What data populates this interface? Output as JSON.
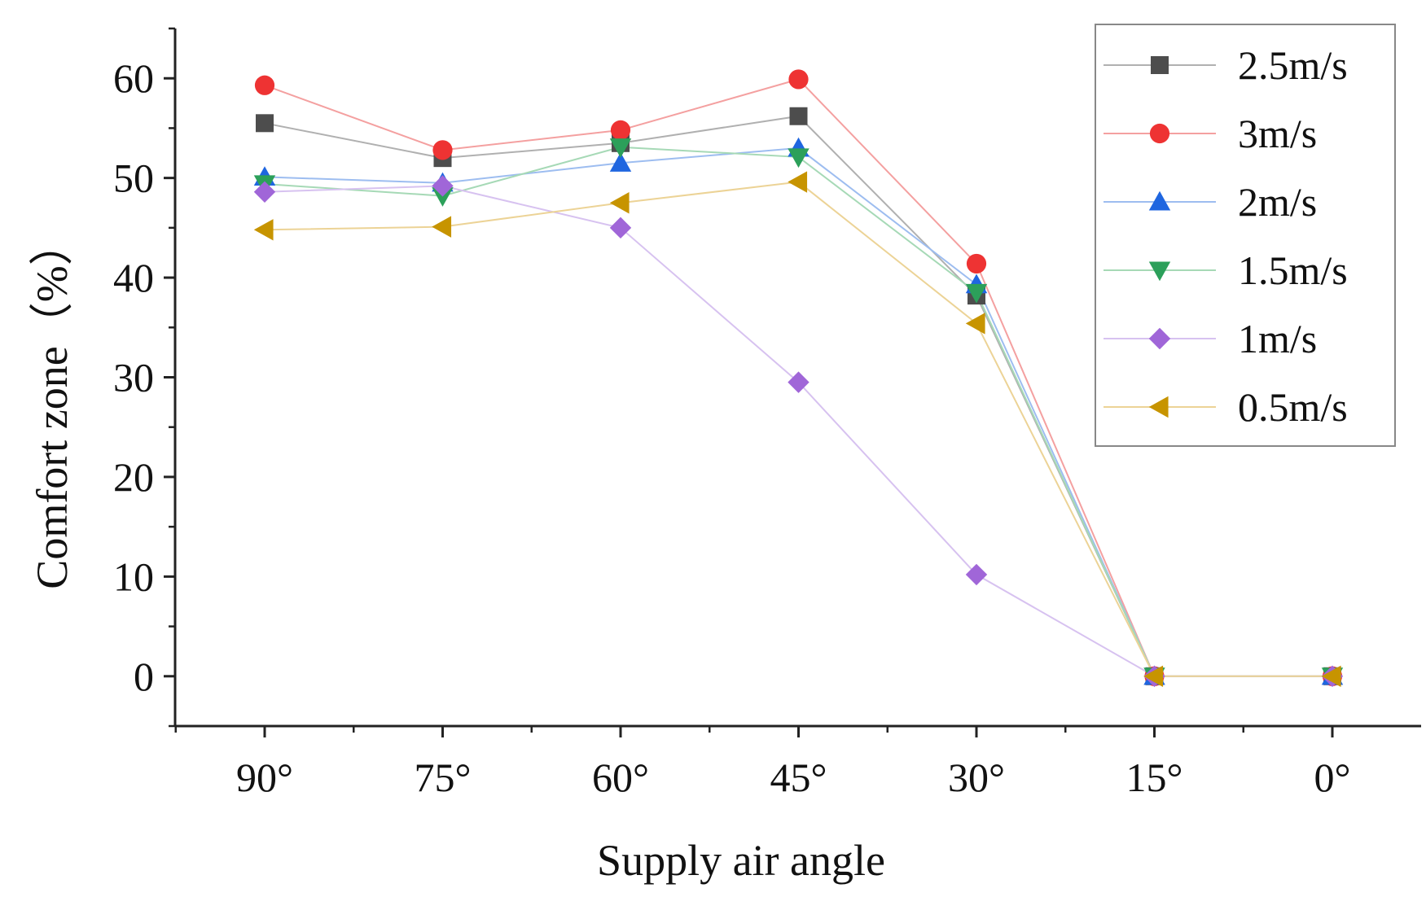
{
  "chart_data": {
    "type": "line",
    "title": "",
    "xlabel": "Supply air angle",
    "ylabel": "Comfort zone（%）",
    "categories": [
      "90°",
      "75°",
      "60°",
      "45°",
      "30°",
      "15°",
      "0°"
    ],
    "ylim": [
      -5,
      65
    ],
    "yticks": [
      0,
      10,
      20,
      30,
      40,
      50,
      60
    ],
    "grid": false,
    "legend_position": "top-right",
    "series": [
      {
        "name": "2.5m/s",
        "marker": "square",
        "color": "#4d4d4d",
        "line_color": "#b0b0b0",
        "values": [
          55.5,
          52,
          53.5,
          56.2,
          38.2,
          0,
          0
        ]
      },
      {
        "name": "3m/s",
        "marker": "circle",
        "color": "#ee3333",
        "line_color": "#f4a0a0",
        "values": [
          59.3,
          52.8,
          54.8,
          59.9,
          41.4,
          0,
          0
        ]
      },
      {
        "name": "2m/s",
        "marker": "triangle-up",
        "color": "#1f66e0",
        "line_color": "#9dbdf0",
        "values": [
          50.1,
          49.5,
          51.5,
          53,
          39.3,
          0,
          0
        ]
      },
      {
        "name": "1.5m/s",
        "marker": "triangle-down",
        "color": "#2ca05a",
        "line_color": "#a6d9b6",
        "values": [
          49.4,
          48.2,
          53.1,
          52.1,
          38.5,
          0,
          0
        ]
      },
      {
        "name": "1m/s",
        "marker": "diamond",
        "color": "#a066d8",
        "line_color": "#d7c2f0",
        "values": [
          48.6,
          49.2,
          45,
          29.5,
          10.2,
          0,
          0
        ]
      },
      {
        "name": "0.5m/s",
        "marker": "triangle-left",
        "color": "#c79400",
        "line_color": "#ecd396",
        "values": [
          44.8,
          45.1,
          47.5,
          49.6,
          35.4,
          0,
          0
        ]
      }
    ]
  }
}
